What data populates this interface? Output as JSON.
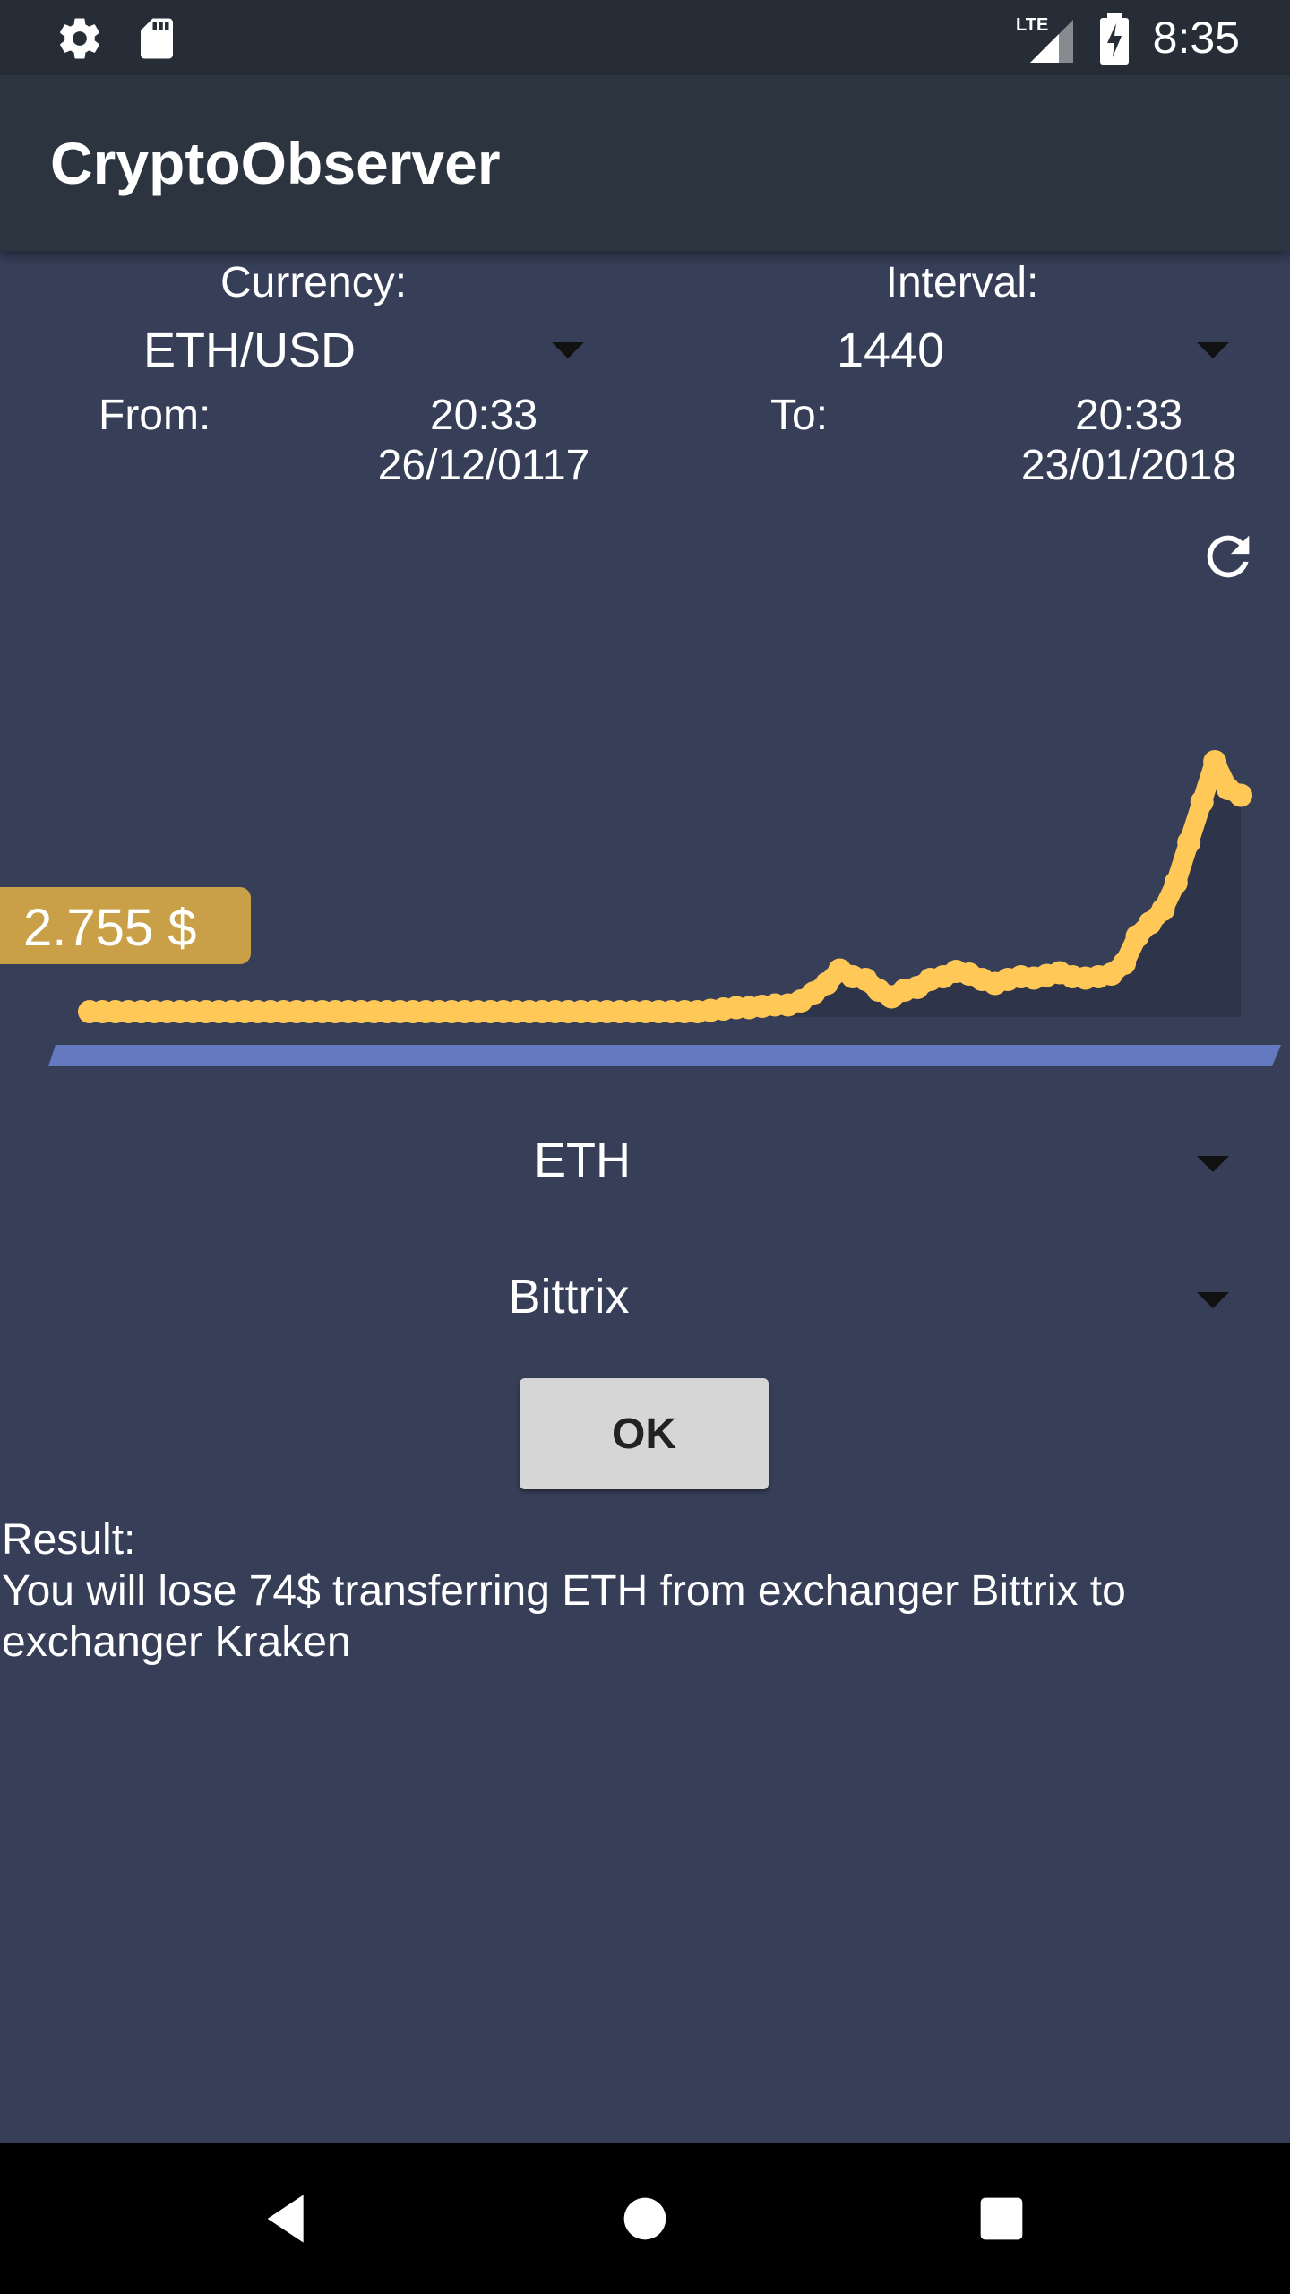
{
  "status_bar": {
    "time": "8:35",
    "left_icons": [
      "gear-icon",
      "sd-card-icon"
    ],
    "right_icons": [
      "lte-signal-icon",
      "battery-charging-icon"
    ]
  },
  "app_bar": {
    "title": "CryptoObserver"
  },
  "currency": {
    "label": "Currency:",
    "value": "ETH/USD"
  },
  "interval": {
    "label": "Interval:",
    "value": "1440"
  },
  "from": {
    "label": "From:",
    "time": "20:33",
    "date": "26/12/0117"
  },
  "to": {
    "label": "To:",
    "time": "20:33",
    "date": "23/01/2018"
  },
  "chart_data": {
    "type": "line",
    "current_value_label": "2.755  $",
    "colors": {
      "line": "#ffc857",
      "area": "#2e344a",
      "baseline": "#6479bf",
      "badge": "#c9a047"
    },
    "values": [
      4,
      4,
      4,
      4,
      4,
      4,
      4,
      4,
      4,
      4,
      4,
      4,
      4,
      4,
      4,
      4,
      4,
      4,
      4,
      4,
      4,
      4,
      4,
      4,
      4,
      4,
      4,
      4,
      4,
      4,
      4,
      4,
      4,
      4,
      4,
      4,
      4,
      4,
      4,
      4,
      4,
      4,
      4,
      4,
      4,
      4,
      4,
      4,
      5,
      6,
      7,
      7,
      8,
      9,
      9,
      12,
      18,
      25,
      35,
      30,
      28,
      20,
      15,
      20,
      22,
      28,
      30,
      34,
      32,
      28,
      25,
      28,
      30,
      29,
      31,
      33,
      30,
      29,
      30,
      32,
      40,
      60,
      70,
      80,
      100,
      130,
      160,
      190,
      170,
      165
    ]
  },
  "asset_spinner": {
    "value": "ETH"
  },
  "exchange_spinner": {
    "value": "Bittrix"
  },
  "ok_button": {
    "label": "OK"
  },
  "result": {
    "label": "Result:",
    "message": "You will lose 74$ transferring ETH from exchanger Bittrix to exchanger Kraken"
  },
  "nav_bar": {
    "icons": [
      "back-icon",
      "home-icon",
      "recents-icon"
    ]
  }
}
